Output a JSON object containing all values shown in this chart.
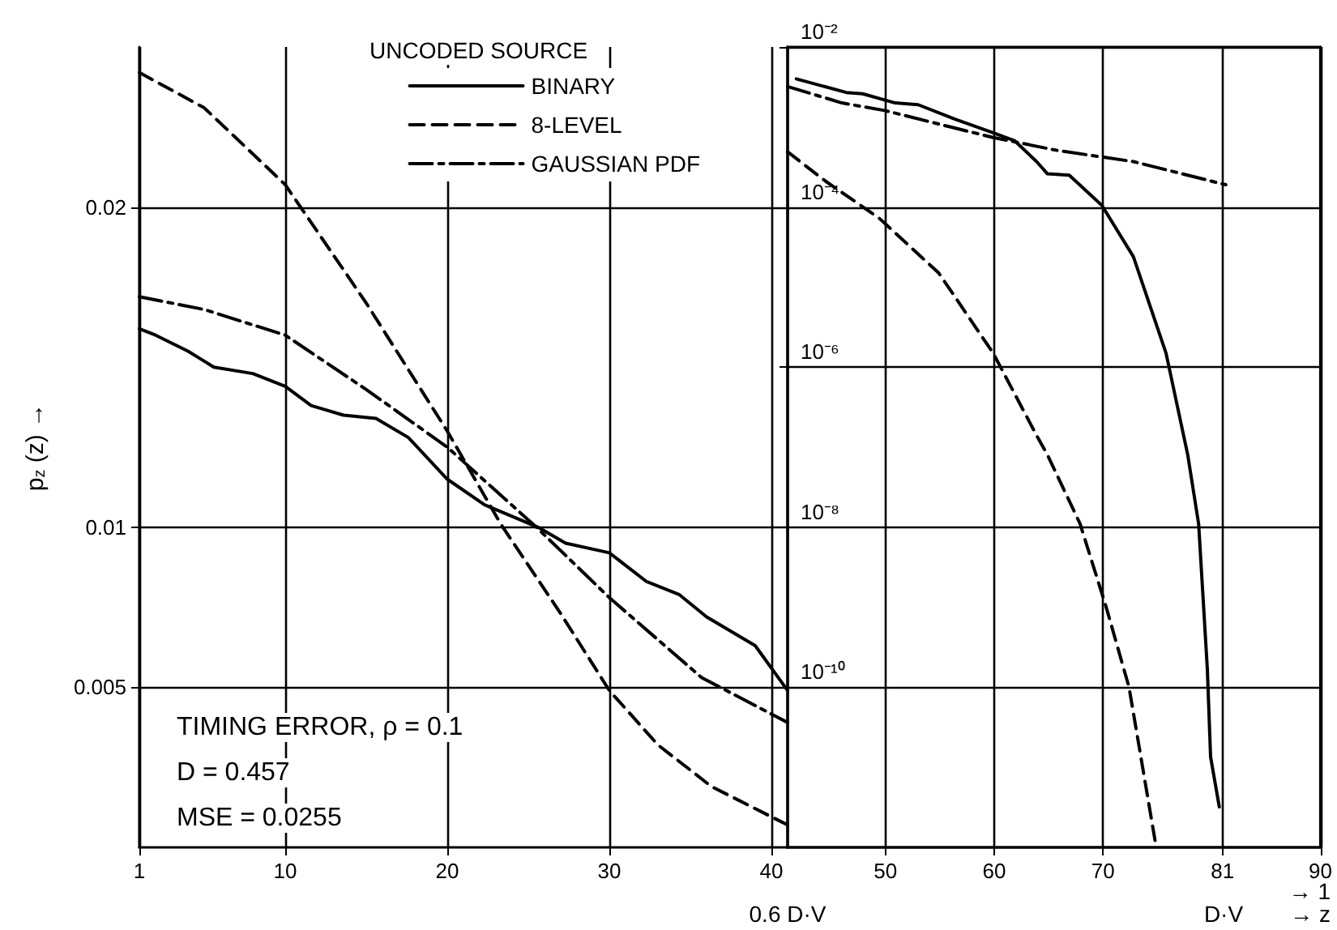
{
  "chart_data": [
    {
      "type": "line",
      "ylabel": "p$_{z}$ (z) →",
      "legend_title": "UNCODED SOURCE",
      "legend": "top right",
      "grid": true,
      "marker": "none",
      "xlim": [
        1,
        41
      ],
      "xticks": [
        1,
        10,
        20,
        30,
        40
      ],
      "ylim": [
        0,
        0.025
      ],
      "yticks": [
        0.005,
        0.01,
        0.02
      ],
      "annotations": [
        "TIMING ERROR, ρ = 0.1",
        "D = 0.457",
        "MSE = 0.0255"
      ],
      "series": [
        {
          "name": "BINARY",
          "color": "#000000",
          "line_style": "solid",
          "x": [
            1,
            2,
            4,
            5.6,
            8,
            10,
            11.6,
            13.6,
            15.6,
            17.6,
            20,
            22.3,
            25.6,
            27.3,
            30,
            32.3,
            34.3,
            36,
            39,
            41
          ],
          "values": [
            0.0162,
            0.016,
            0.0155,
            0.015,
            0.0148,
            0.0144,
            0.0138,
            0.0135,
            0.0134,
            0.0128,
            0.0115,
            0.0107,
            0.01,
            0.0095,
            0.0092,
            0.0083,
            0.0079,
            0.0072,
            0.0063,
            0.0049
          ]
        },
        {
          "name": "8-LEVEL",
          "color": "#000000",
          "line_style": "dashed",
          "x": [
            1,
            5,
            10,
            15,
            20,
            23.3,
            27,
            30,
            33,
            36.3,
            41
          ],
          "values": [
            0.0242,
            0.0231,
            0.0207,
            0.017,
            0.013,
            0.0101,
            0.0073,
            0.0049,
            0.0032,
            0.0019,
            0.0007
          ]
        },
        {
          "name": "GAUSSIAN PDF",
          "color": "#000000",
          "line_style": "dashdot",
          "x": [
            1,
            5,
            10,
            15,
            20,
            25.5,
            30,
            35.7,
            41
          ],
          "values": [
            0.0172,
            0.0168,
            0.016,
            0.0143,
            0.0125,
            0.01,
            0.0078,
            0.0053,
            0.0039
          ]
        }
      ]
    },
    {
      "type": "line",
      "log": "y",
      "grid": true,
      "marker": "none",
      "legend": false,
      "xlim": [
        41,
        90
      ],
      "xticks": [
        50,
        60,
        70,
        81,
        90
      ],
      "ylim": [
        1e-12,
        0.01
      ],
      "yticks": [
        {
          "value": 0.01,
          "label": "10⁻²"
        },
        {
          "value": 0.0001,
          "label": "10⁻⁴"
        },
        {
          "value": 1e-06,
          "label": "10⁻⁶"
        },
        {
          "value": 1e-08,
          "label": "10⁻⁸"
        },
        {
          "value": 1e-10,
          "label": "10⁻¹⁰"
        }
      ],
      "annotations": [
        "0.6 D·V",
        "D·V",
        "→ 1",
        "→ z"
      ],
      "series": [
        {
          "color": "#000000",
          "line_style": "solid",
          "x": [
            41.8,
            46.4,
            47.9,
            50.9,
            53,
            56.4,
            59.9,
            61.9,
            63.9,
            64.9,
            66.9,
            69.9,
            72.8,
            75.8,
            77.8,
            78.8,
            79.6,
            79.9,
            80.7
          ],
          "values": [
            0.004,
            0.0027,
            0.0026,
            0.002,
            0.0019,
            0.00125,
            0.00085,
            0.00067,
            0.00037,
            0.00026,
            0.00025,
            0.000105,
            2.4e-05,
            1.5e-06,
            8e-08,
            1.1e-08,
            1.7e-10,
            1.35e-11,
            3.2e-12
          ]
        },
        {
          "color": "#000000",
          "line_style": "dashed",
          "x": [
            41,
            44.5,
            49.4,
            54.9,
            59.9,
            63.9,
            64.9,
            67.9,
            70.3,
            72.4,
            74.8
          ],
          "values": [
            0.00049,
            0.00021,
            7.3e-05,
            1.5e-05,
            1.5e-06,
            1.4e-07,
            8e-08,
            1.1e-08,
            1e-09,
            1e-10,
            1.2e-12
          ]
        },
        {
          "color": "#000000",
          "line_style": "dashdot",
          "x": [
            41,
            46,
            50,
            56,
            59.9,
            65.8,
            72.8,
            81.3
          ],
          "values": [
            0.0032,
            0.002,
            0.0016,
            0.001,
            0.00074,
            0.00051,
            0.00037,
            0.00019
          ]
        }
      ]
    }
  ]
}
